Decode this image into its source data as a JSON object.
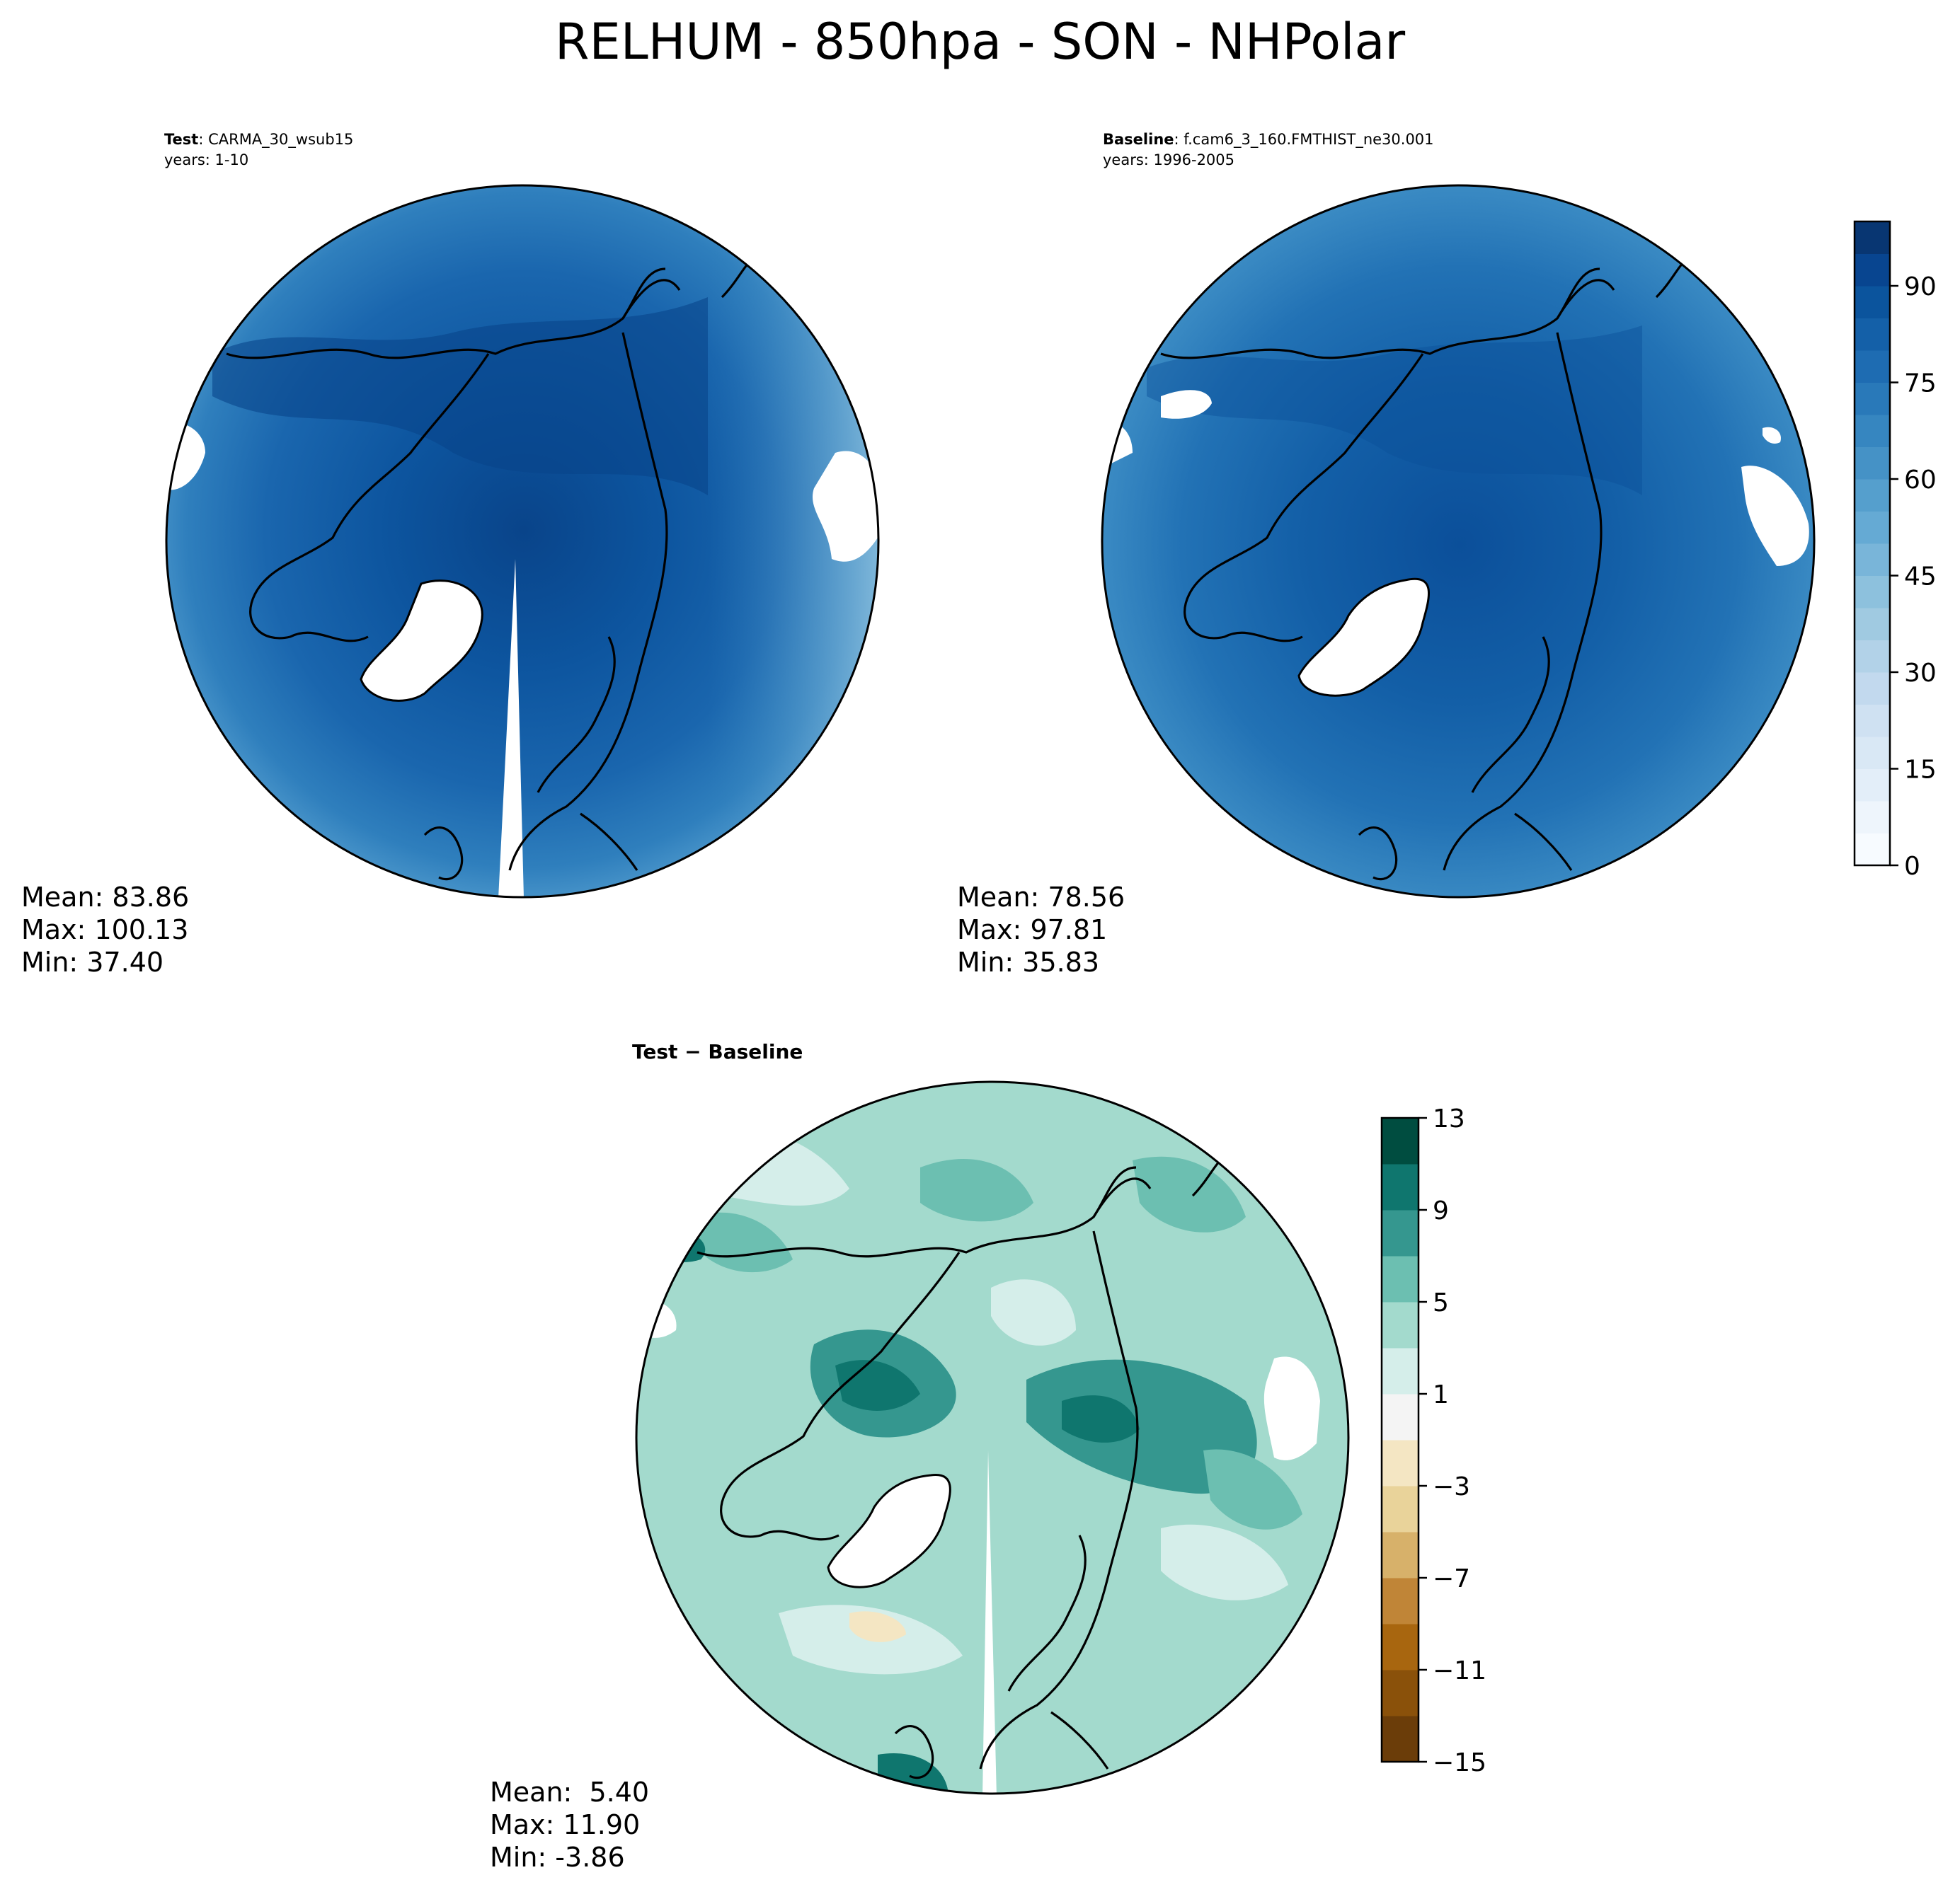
{
  "figure": {
    "title": "RELHUM - 850hpa - SON - NHPolar"
  },
  "panels": {
    "test": {
      "label_bold": "Test",
      "label_rest": ": CARMA_30_wsub15",
      "years": "years: 1-10",
      "mean": "Mean: 83.86",
      "max": "Max: 100.13",
      "min": "Min: 37.40"
    },
    "baseline": {
      "label_bold": "Baseline",
      "label_rest": ": f.cam6_3_160.FMTHIST_ne30.001",
      "years": "years: 1996-2005",
      "mean": "Mean: 78.56",
      "max": "Max: 97.81",
      "min": "Min: 35.83"
    },
    "diff": {
      "title": "Test − Baseline",
      "mean": "Mean:  5.40",
      "max": "Max: 11.90",
      "min": "Min: -3.86"
    }
  },
  "colorbars": {
    "relhum": {
      "min": 0,
      "max": 100,
      "levels": 20,
      "ticks": [
        0,
        15,
        30,
        45,
        60,
        75,
        90
      ],
      "tick_labels": [
        "0",
        "15",
        "30",
        "45",
        "60",
        "75",
        "90"
      ],
      "colormap": "Blues",
      "colors": [
        "#f7fbff",
        "#eef5fc",
        "#e3eef9",
        "#d9e8f5",
        "#cfe1f2",
        "#c2d9ee",
        "#b2d2e8",
        "#a0cae1",
        "#8dc1dd",
        "#79b5d9",
        "#65aad4",
        "#559fcd",
        "#4592c6",
        "#3686c0",
        "#2979b9",
        "#1e6cb2",
        "#1460a8",
        "#0b549d",
        "#084590",
        "#083672"
      ]
    },
    "diff": {
      "min": -15,
      "max": 13,
      "ticks": [
        -15,
        -11,
        -7,
        -3,
        1,
        5,
        9,
        13
      ],
      "tick_labels": [
        "−15",
        "−11",
        "−7",
        "−3",
        "1",
        "5",
        "9",
        "13"
      ],
      "colormap": "BrBG",
      "colors": [
        "#6b3d09",
        "#8a510a",
        "#a8660f",
        "#c08537",
        "#d7b16a",
        "#e9d39a",
        "#f4e6c3",
        "#f4f4f4",
        "#d5eeea",
        "#a3dacd",
        "#6cbfb1",
        "#35978f",
        "#0f766e",
        "#004d40"
      ]
    }
  },
  "maps": {
    "projection": "North polar stereographic",
    "test_colors": {
      "outer": "#2f7fbd",
      "mid": "#1a66ae",
      "inner": "#0d559f",
      "core": "#09448a",
      "edge": "#6aaed6"
    },
    "baseline_colors": {
      "outer": "#3a8ac3",
      "mid": "#2272b5",
      "inner": "#135fa7",
      "core": "#0b4f9a",
      "edge": "#72b3d8"
    },
    "diff_colors": {
      "base": "#a3dacd",
      "light": "#d5eeea",
      "mid": "#6cbfb1",
      "strong": "#35978f",
      "dark": "#0f766e",
      "neg": "#f4e6c3"
    }
  }
}
